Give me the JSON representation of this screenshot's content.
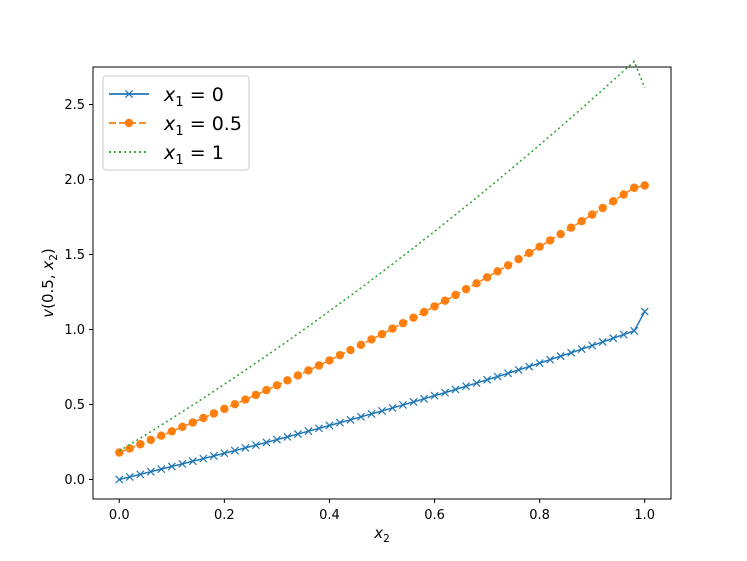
{
  "chart_data": {
    "type": "line",
    "xlabel": "x_2",
    "ylabel": "v(0.5, x_2)",
    "xlim": [
      -0.05,
      1.05
    ],
    "ylim": [
      -0.13,
      2.75
    ],
    "xticks": [
      0.0,
      0.2,
      0.4,
      0.6,
      0.8,
      1.0
    ],
    "xtick_labels": [
      "0.0",
      "0.2",
      "0.4",
      "0.6",
      "0.8",
      "1.0"
    ],
    "yticks": [
      0.0,
      0.5,
      1.0,
      1.5,
      2.0,
      2.5
    ],
    "ytick_labels": [
      "0.0",
      "0.5",
      "1.0",
      "1.5",
      "2.0",
      "2.5"
    ],
    "legend_position": "top-left",
    "grid": false,
    "x": [
      0.0,
      0.02,
      0.04,
      0.06,
      0.08,
      0.1,
      0.12,
      0.14,
      0.16,
      0.18,
      0.2,
      0.22,
      0.24,
      0.26,
      0.28,
      0.3,
      0.32,
      0.34,
      0.36,
      0.38,
      0.4,
      0.42,
      0.44,
      0.46,
      0.48,
      0.5,
      0.52,
      0.54,
      0.56,
      0.58,
      0.6,
      0.62,
      0.64,
      0.66,
      0.68,
      0.7,
      0.72,
      0.74,
      0.76,
      0.78,
      0.8,
      0.82,
      0.84,
      0.86,
      0.88,
      0.9,
      0.92,
      0.94,
      0.96,
      0.98,
      1.0
    ],
    "series": [
      {
        "name": "x_1 = 0",
        "legend": {
          "var": "x",
          "sub": "1",
          "rest": " = 0"
        },
        "color": "#1f77b4",
        "linestyle": "solid",
        "marker": "x",
        "values": [
          0.0,
          0.017,
          0.034,
          0.052,
          0.069,
          0.087,
          0.104,
          0.122,
          0.139,
          0.157,
          0.175,
          0.193,
          0.211,
          0.229,
          0.247,
          0.266,
          0.284,
          0.303,
          0.322,
          0.341,
          0.36,
          0.379,
          0.398,
          0.418,
          0.437,
          0.457,
          0.477,
          0.497,
          0.517,
          0.538,
          0.559,
          0.579,
          0.6,
          0.622,
          0.643,
          0.665,
          0.686,
          0.708,
          0.731,
          0.753,
          0.776,
          0.799,
          0.822,
          0.845,
          0.869,
          0.893,
          0.917,
          0.942,
          0.966,
          0.991,
          1.12
        ]
      },
      {
        "name": "x_1 = 0.5",
        "legend": {
          "var": "x",
          "sub": "1",
          "rest": " = 0.5"
        },
        "color": "#ff7f0e",
        "linestyle": "dashed",
        "marker": "o",
        "values": [
          0.18,
          0.207,
          0.235,
          0.264,
          0.292,
          0.321,
          0.351,
          0.38,
          0.41,
          0.44,
          0.471,
          0.502,
          0.533,
          0.564,
          0.596,
          0.628,
          0.661,
          0.694,
          0.727,
          0.76,
          0.794,
          0.829,
          0.863,
          0.898,
          0.934,
          0.969,
          1.006,
          1.042,
          1.079,
          1.116,
          1.154,
          1.192,
          1.23,
          1.269,
          1.308,
          1.348,
          1.388,
          1.428,
          1.469,
          1.51,
          1.552,
          1.594,
          1.636,
          1.679,
          1.722,
          1.766,
          1.81,
          1.855,
          1.9,
          1.945,
          1.96
        ]
      },
      {
        "name": "x_1 = 1",
        "legend": {
          "var": "x",
          "sub": "1",
          "rest": " = 1"
        },
        "color": "#2ca02c",
        "linestyle": "dotted",
        "marker": "none",
        "values": [
          0.19,
          0.233,
          0.276,
          0.319,
          0.363,
          0.407,
          0.452,
          0.497,
          0.542,
          0.588,
          0.635,
          0.682,
          0.729,
          0.777,
          0.825,
          0.873,
          0.922,
          0.972,
          1.021,
          1.072,
          1.123,
          1.174,
          1.225,
          1.277,
          1.33,
          1.383,
          1.436,
          1.49,
          1.544,
          1.599,
          1.654,
          1.71,
          1.766,
          1.822,
          1.879,
          1.937,
          1.995,
          2.053,
          2.112,
          2.171,
          2.231,
          2.291,
          2.351,
          2.412,
          2.474,
          2.536,
          2.598,
          2.661,
          2.724,
          2.788,
          2.61
        ]
      }
    ]
  }
}
